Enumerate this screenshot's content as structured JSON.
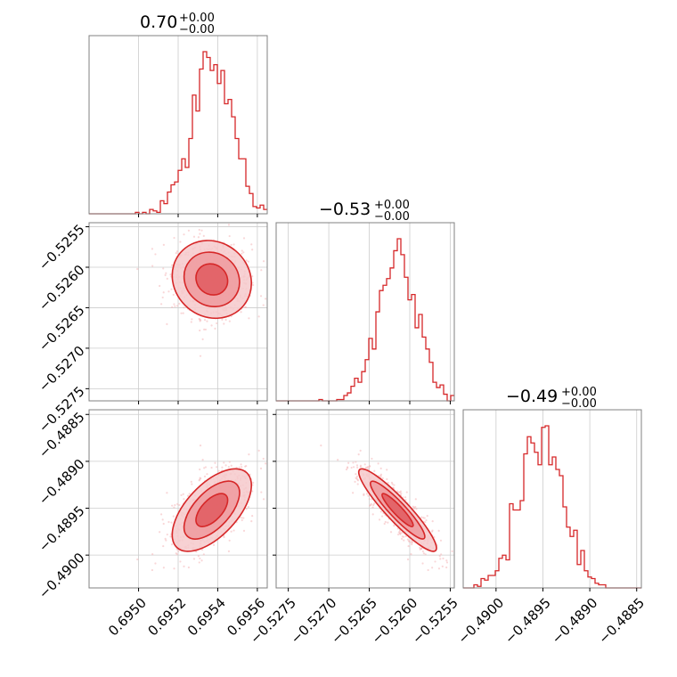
{
  "chart_data": {
    "type": "corner",
    "color": "#d62728",
    "fill_colors": [
      "#f6c9cb",
      "#ee9a9d",
      "#e05a5f"
    ],
    "scatter_color": "#f4b6b8",
    "grid": true,
    "parameters": [
      {
        "id": "p1",
        "title_value": "0.70",
        "title_plus": "+0.00",
        "title_minus": "−0.00",
        "range": [
          0.69475,
          0.69565
        ],
        "mean": 0.69537,
        "std": 0.0001,
        "ticks": [
          0.695,
          0.6952,
          0.6954,
          0.6956
        ],
        "tick_labels": [
          "0.6950",
          "0.6952",
          "0.6954",
          "0.6956"
        ]
      },
      {
        "id": "p2",
        "title_value": "−0.53",
        "title_plus": "+0.00",
        "title_minus": "−0.00",
        "range": [
          -0.52765,
          -0.52545
        ],
        "mean": -0.52615,
        "std": 0.00024,
        "ticks": [
          -0.5275,
          -0.527,
          -0.5265,
          -0.526,
          -0.5255
        ],
        "tick_labels": [
          "−0.5275",
          "−0.5270",
          "−0.5265",
          "−0.5260",
          "−0.5255"
        ]
      },
      {
        "id": "p3",
        "title_value": "−0.49",
        "title_plus": "+0.00",
        "title_minus": "−0.00",
        "range": [
          -0.49035,
          -0.48845
        ],
        "mean": -0.48952,
        "std": 0.00022,
        "ticks": [
          -0.49,
          -0.4895,
          -0.489,
          -0.4885
        ],
        "tick_labels": [
          "−0.4900",
          "−0.4895",
          "−0.4890",
          "−0.4885"
        ]
      }
    ],
    "hist_bins": 50,
    "correlations": {
      "p1_p2": -0.1,
      "p1_p3": 0.6,
      "p2_p3": -0.92
    },
    "n_samples": 1500
  }
}
